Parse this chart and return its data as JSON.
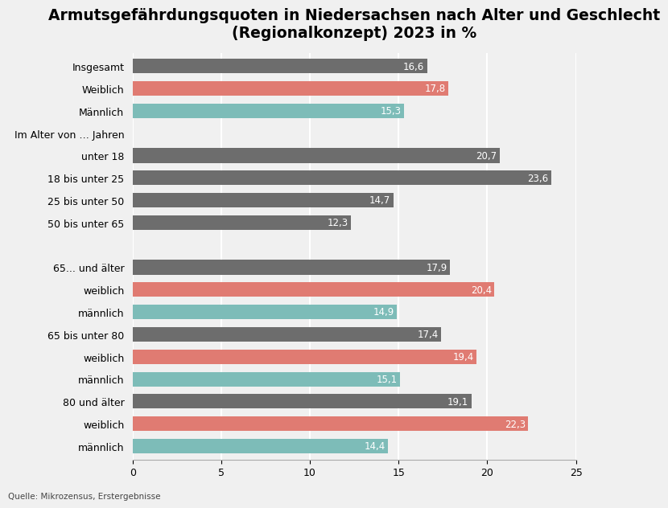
{
  "title": "Armutsgefährdungsquoten in Niedersachsen nach Alter und Geschlecht\n(Regionalkonzept) 2023 in %",
  "labels": [
    "Insgesamt",
    "Weiblich",
    "Männlich",
    "Im Alter von … Jahren",
    "unter 18",
    "18 bis unter 25",
    "25 bis unter 50",
    "50 bis unter 65",
    "",
    "65... und älter",
    "weiblich",
    "männlich",
    "65 bis unter 80",
    "weiblich",
    "männlich",
    "80 und älter",
    "weiblich",
    "männlich"
  ],
  "values": [
    16.6,
    17.8,
    15.3,
    0,
    20.7,
    23.6,
    14.7,
    12.3,
    0,
    17.9,
    20.4,
    14.9,
    17.4,
    19.4,
    15.1,
    19.1,
    22.3,
    14.4
  ],
  "colors": [
    "#6d6d6d",
    "#e07b72",
    "#7dbcb8",
    "none",
    "#6d6d6d",
    "#6d6d6d",
    "#6d6d6d",
    "#6d6d6d",
    "none",
    "#6d6d6d",
    "#e07b72",
    "#7dbcb8",
    "#6d6d6d",
    "#e07b72",
    "#7dbcb8",
    "#6d6d6d",
    "#e07b72",
    "#7dbcb8"
  ],
  "xlim": [
    0,
    25
  ],
  "xticks": [
    0,
    5,
    10,
    15,
    20,
    25
  ],
  "background_color": "#f0f0f0",
  "bar_height": 0.65,
  "label_fontsize": 9,
  "value_fontsize": 8.5,
  "title_fontsize": 13.5,
  "source_text": "Quelle: Mikrozensus, Erstergebnisse",
  "source_fontsize": 7.5,
  "grid_color": "#ffffff",
  "spine_color": "#aaaaaa"
}
